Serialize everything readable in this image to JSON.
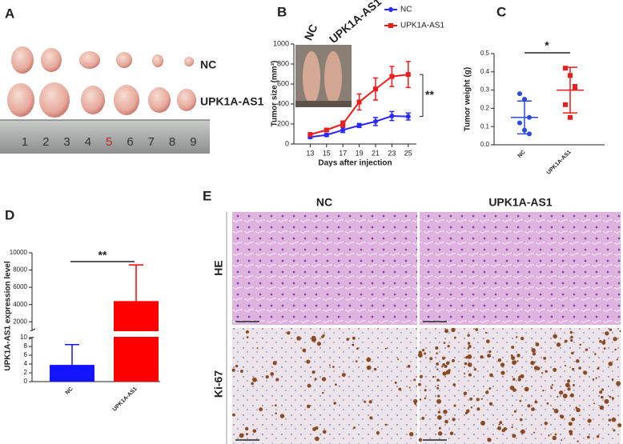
{
  "panel_labels": [
    "A",
    "B",
    "C",
    "D",
    "E"
  ],
  "photo_a": {
    "row_labels": [
      "NC",
      "UPK1A-AS1"
    ],
    "ruler": [
      "1",
      "2",
      "3",
      "4",
      "5",
      "6",
      "7",
      "8",
      "9"
    ]
  },
  "photo_b": {
    "labels": [
      "NC",
      "UPK1A-AS1"
    ]
  },
  "photo_e": {
    "columns": [
      "NC",
      "UPK1A-AS1"
    ],
    "rows": [
      "HE",
      "Ki-67"
    ]
  },
  "chart_data": [
    {
      "type": "line",
      "x_label": "Days after injection",
      "y_label": "Tumor size (mm³)",
      "annotation": "**",
      "x": [
        13,
        15,
        17,
        19,
        21,
        23,
        25
      ],
      "xlim": [
        11,
        26
      ],
      "xticks": [
        13,
        15,
        17,
        19,
        21,
        23,
        25
      ],
      "ylim": [
        0,
        1000
      ],
      "yticks": [
        0,
        200,
        400,
        600,
        800,
        1000
      ],
      "legend": "top-right",
      "series": [
        {
          "name": "NC",
          "color": "#2a2aff",
          "values": [
            70,
            90,
            140,
            185,
            225,
            280,
            275
          ],
          "errors": [
            15,
            15,
            25,
            20,
            40,
            45,
            35
          ]
        },
        {
          "name": "UPK1A-AS1",
          "color": "#ee1c1c",
          "values": [
            95,
            140,
            200,
            420,
            550,
            675,
            695
          ],
          "errors": [
            15,
            15,
            30,
            80,
            110,
            100,
            130
          ]
        }
      ]
    },
    {
      "type": "dotplot",
      "y_label": "Tumor weight (g)",
      "annotation": "*",
      "categories": [
        "NC",
        "UPK1A-AS1"
      ],
      "colors": [
        "#2a4bd7",
        "#ee1c1c"
      ],
      "values": [
        [
          0.28,
          0.25,
          0.15,
          0.12,
          0.08,
          0.06
        ],
        [
          0.42,
          0.38,
          0.32,
          0.22,
          0.15,
          0.31
        ]
      ],
      "means": [
        0.15,
        0.3
      ],
      "sds": [
        0.09,
        0.125
      ],
      "ylim": [
        0,
        0.5
      ],
      "yticks": [
        {
          "value": 0,
          "label": "0.0"
        },
        0.1,
        0.2,
        0.3,
        0.4,
        0.5
      ]
    },
    {
      "type": "bar",
      "y_label": "UPK1A-AS1 expression level",
      "annotation": "**",
      "categories": [
        "NC",
        "UPK1A-AS1"
      ],
      "colors": [
        "#1414ff",
        "#ff0000"
      ],
      "values": [
        3.8,
        4400
      ],
      "errors": [
        4.6,
        4200
      ],
      "ylim": [
        0,
        10000
      ],
      "ybreak": [
        10,
        1000
      ],
      "yticks": [
        0,
        2,
        4,
        6,
        8,
        10,
        2000,
        4000,
        6000,
        8000,
        10000
      ]
    }
  ]
}
